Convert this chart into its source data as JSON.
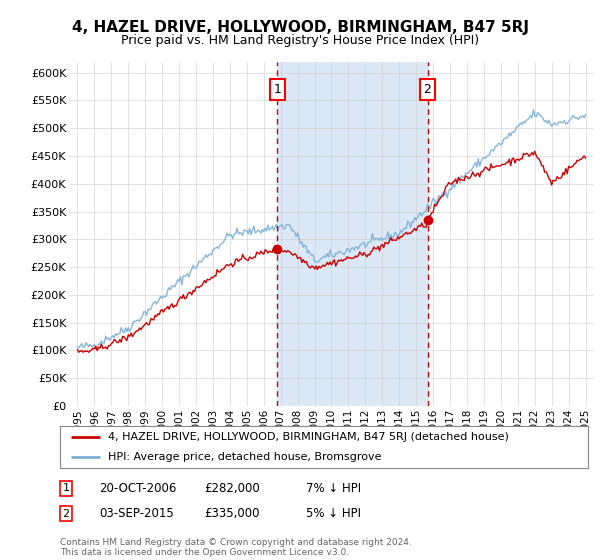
{
  "title": "4, HAZEL DRIVE, HOLLYWOOD, BIRMINGHAM, B47 5RJ",
  "subtitle": "Price paid vs. HM Land Registry's House Price Index (HPI)",
  "legend_line1": "4, HAZEL DRIVE, HOLLYWOOD, BIRMINGHAM, B47 5RJ (detached house)",
  "legend_line2": "HPI: Average price, detached house, Bromsgrove",
  "annotation1_date": "20-OCT-2006",
  "annotation1_price": "£282,000",
  "annotation1_hpi": "7% ↓ HPI",
  "annotation1_year": 2006.8,
  "annotation1_value": 282000,
  "annotation2_date": "03-SEP-2015",
  "annotation2_price": "£335,000",
  "annotation2_hpi": "5% ↓ HPI",
  "annotation2_year": 2015.67,
  "annotation2_value": 335000,
  "footer": "Contains HM Land Registry data © Crown copyright and database right 2024.\nThis data is licensed under the Open Government Licence v3.0.",
  "ylim": [
    0,
    620000
  ],
  "yticks": [
    0,
    50000,
    100000,
    150000,
    200000,
    250000,
    300000,
    350000,
    400000,
    450000,
    500000,
    550000,
    600000
  ],
  "xlim": [
    1994.5,
    2025.5
  ],
  "red_color": "#cc0000",
  "blue_color": "#7aaed6",
  "shade_color": "#dce8f5",
  "grid_color": "#cccccc",
  "bg_color": "#ffffff"
}
